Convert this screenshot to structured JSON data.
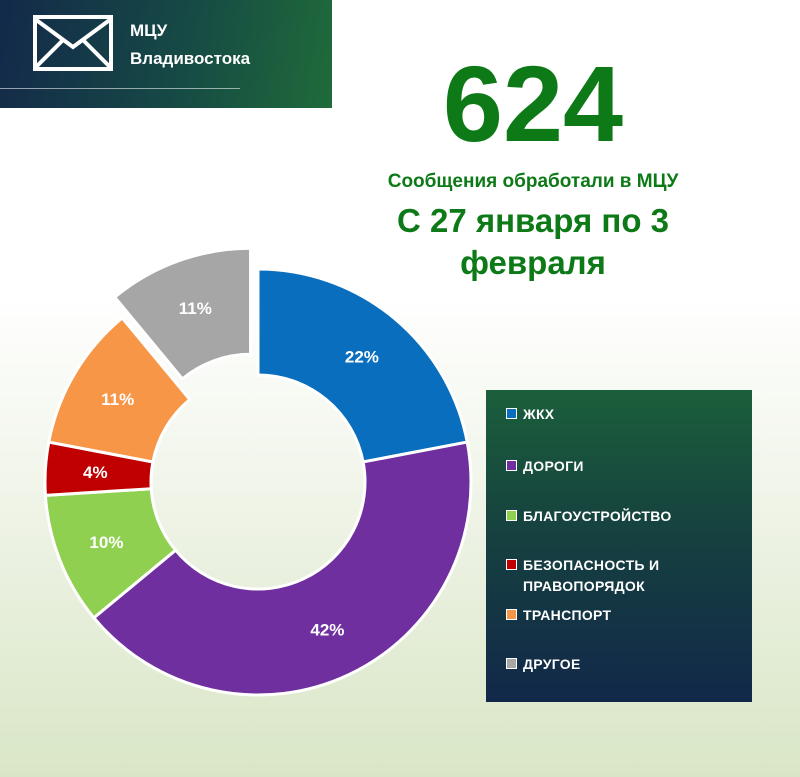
{
  "header": {
    "org_line1": "МЦУ",
    "org_line2": "Владивостока",
    "icon": "envelope-icon"
  },
  "headline": {
    "count": "624",
    "subtitle": "Сообщения обработали в МЦУ",
    "period_line1": "С 27 января по 3",
    "period_line2": "февраля"
  },
  "chart_data": {
    "type": "pie",
    "style": "donut",
    "categories": [
      "ЖКХ",
      "ДОРОГИ",
      "БЛАГОУСТРОЙСТВО",
      "БЕЗОПАСНОСТЬ И ПРАВОПОРЯДОК",
      "ТРАНСПОРТ",
      "ДРУГОЕ"
    ],
    "values": [
      22,
      42,
      10,
      4,
      11,
      11
    ],
    "value_labels": [
      "22%",
      "42%",
      "10%",
      "4%",
      "11%",
      "11%"
    ],
    "colors": [
      "#0a6ebe",
      "#6f2f9e",
      "#90d050",
      "#c00000",
      "#f79646",
      "#a6a6a6"
    ],
    "exploded": [
      "ДРУГОЕ"
    ],
    "legend_position": "right",
    "legend_labels": [
      [
        "ЖКХ"
      ],
      [
        "ДОРОГИ"
      ],
      [
        "БЛАГОУСТРОЙСТВО"
      ],
      [
        "БЕЗОПАСНОСТЬ И",
        "ПРАВОПОРЯДОК"
      ],
      [
        "ТРАНСПОРТ"
      ],
      [
        "ДРУГОЕ"
      ]
    ]
  }
}
